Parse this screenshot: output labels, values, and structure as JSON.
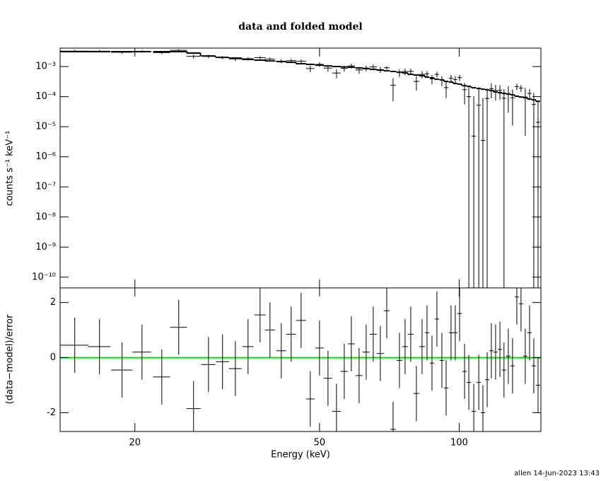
{
  "chart_data": [
    {
      "type": "errorbar",
      "title": "data and folded model",
      "ylabel": "counts s⁻¹ keV⁻¹",
      "log_x": true,
      "log_y": true,
      "xlim": [
        13.8,
        150
      ],
      "ylim": [
        4.4e-11,
        0.0041
      ],
      "yticks": [
        {
          "value": 0.001,
          "label": "10⁻³"
        },
        {
          "value": 0.0001,
          "label": "10⁻⁴"
        },
        {
          "value": 1e-05,
          "label": "10⁻⁵"
        },
        {
          "value": 1e-06,
          "label": "10⁻⁶"
        },
        {
          "value": 1e-07,
          "label": "10⁻⁷"
        },
        {
          "value": 1e-08,
          "label": "10⁻⁸"
        },
        {
          "value": 1e-09,
          "label": "10⁻⁹"
        },
        {
          "value": 1e-10,
          "label": "10⁻¹⁰"
        }
      ],
      "color": "#000000",
      "model_color": "#000000",
      "x": [
        14.84,
        16.78,
        18.77,
        20.72,
        22.86,
        24.86,
        26.76,
        28.82,
        30.9,
        32.93,
        35.07,
        37.23,
        39.1,
        41.36,
        43.44,
        45.63,
        47.76,
        50.0,
        52.15,
        54.39,
        56.53,
        58.55,
        60.85,
        63.03,
        65.28,
        67.61,
        69.8,
        72.03,
        74.34,
        76.45,
        78.62,
        80.86,
        83.18,
        85.24,
        87.37,
        89.53,
        91.76,
        93.72,
        96.03,
        98.07,
        100.2,
        102.7,
        104.9,
        107.5,
        110.2,
        112.5,
        114.9,
        117.3,
        119.8,
        122.4,
        124.9,
        127.6,
        130.3,
        133.1,
        135.9,
        138.8,
        141.8,
        144.8,
        147.9
      ],
      "x_err": [
        1.04,
        0.94,
        0.99,
        0.95,
        0.96,
        1.05,
        0.94,
        1.01,
        0.98,
        1.04,
        0.98,
        1.05,
        0.96,
        1.02,
        1.07,
        1.12,
        1.0,
        1.05,
        1.1,
        1.15,
        0.99,
        1.03,
        1.07,
        1.11,
        1.15,
        1.19,
        0.98,
        1.01,
        1.04,
        1.07,
        1.1,
        1.13,
        1.17,
        0.9,
        0.92,
        0.94,
        0.97,
        0.99,
        1.01,
        1.03,
        1.06,
        1.08,
        1.1,
        1.13,
        1.16,
        1.18,
        1.21,
        1.24,
        1.26,
        1.29,
        1.32,
        1.34,
        1.37,
        1.4,
        1.43,
        1.46,
        1.49,
        1.52,
        1.56
      ],
      "values": [
        0.00326,
        0.00324,
        0.00298,
        0.00318,
        0.0029,
        0.00346,
        0.00218,
        0.00218,
        0.00198,
        0.0018,
        0.00182,
        0.00198,
        0.00177,
        0.00151,
        0.00157,
        0.00151,
        0.00086,
        0.00118,
        0.00089,
        0.00061,
        0.00087,
        0.00105,
        0.00077,
        0.00089,
        0.00097,
        0.00079,
        0.00091,
        0.00024,
        0.00063,
        0.00068,
        0.00069,
        0.00032,
        0.00055,
        0.00057,
        0.00039,
        0.00055,
        0.00035,
        0.0002,
        0.00041,
        0.00037,
        0.00043,
        0.00017,
        0.0001,
        4.9e-06,
        5.2e-05,
        3.5e-06,
        8.7e-05,
        0.000183,
        0.00016,
        0.00016,
        8.8e-05,
        0.000126,
        9.1e-05,
        0.000216,
        0.000192,
        9.7e-05,
        0.000128,
        5.5e-05,
        1.4e-05
      ],
      "errors": [
        0.00031,
        0.00031,
        0.00031,
        0.00031,
        0.00031,
        0.00031,
        0.00034,
        0.00027,
        0.00024,
        0.00027,
        0.00024,
        0.00023,
        0.00023,
        0.00022,
        0.00022,
        0.0002,
        0.00021,
        0.0002,
        0.00021,
        0.0002,
        0.00019,
        0.00019,
        0.0002,
        0.00019,
        0.00019,
        0.00018,
        0.00011,
        0.00017,
        0.00018,
        0.00017,
        0.000165,
        0.00016,
        0.00015,
        0.00013,
        0.000135,
        0.00012,
        0.000125,
        0.00011,
        0.00012,
        0.00011,
        0.0001,
        0.000115,
        0.00013,
        9.9e-05,
        0.00015,
        8.7e-05,
        0.0001,
        9.5e-05,
        8.6e-05,
        8.1e-05,
        9e-05,
        9.7e-05,
        8e-05,
        5.2e-05,
        4.9e-05,
        9.2e-05,
        5e-05,
        7.8e-05,
        5.6e-05
      ],
      "model": [
        0.00312,
        0.00312,
        0.00312,
        0.00312,
        0.00312,
        0.00312,
        0.0028,
        0.00225,
        0.00202,
        0.00191,
        0.00172,
        0.00163,
        0.00154,
        0.00146,
        0.00138,
        0.00124,
        0.00118,
        0.00111,
        0.00105,
        0.001,
        0.00097,
        0.00095,
        0.000897,
        0.00085,
        0.000805,
        0.00076,
        0.000722,
        0.000685,
        0.000648,
        0.00061,
        0.00055,
        0.000522,
        0.000495,
        0.000445,
        0.00042,
        0.000377,
        0.00036,
        0.00032,
        0.000304,
        0.000273,
        0.00026,
        0.00023,
        0.00022,
        0.000197,
        0.000187,
        0.000177,
        0.000168,
        0.000159,
        0.000143,
        0.000135,
        0.000128,
        0.000121,
        0.000115,
        0.000103,
        9.7e-05,
        9.2e-05,
        8.3e-05,
        7.8e-05,
        7e-05
      ]
    },
    {
      "type": "errorbar",
      "xlabel": "Energy (keV)",
      "ylabel": "(data−model)/error",
      "log_x": true,
      "xlim": [
        13.8,
        150
      ],
      "ylim": [
        -2.68,
        2.53
      ],
      "xticks": [
        20,
        50,
        100
      ],
      "yticks": [
        -2,
        0,
        2
      ],
      "color": "#000000",
      "reference_line": {
        "value": 0,
        "color": "#00dd00"
      },
      "x": [
        14.84,
        16.78,
        18.77,
        20.72,
        22.86,
        24.86,
        26.76,
        28.82,
        30.9,
        32.93,
        35.07,
        37.23,
        39.1,
        41.36,
        43.44,
        45.63,
        47.76,
        50.0,
        52.15,
        54.39,
        56.53,
        58.55,
        60.85,
        63.03,
        65.28,
        67.61,
        69.8,
        72.03,
        74.34,
        76.45,
        78.62,
        80.86,
        83.18,
        85.24,
        87.37,
        89.53,
        91.76,
        93.72,
        96.03,
        98.07,
        100.2,
        102.7,
        104.9,
        107.5,
        110.2,
        112.5,
        114.9,
        117.3,
        119.8,
        122.4,
        124.9,
        127.6,
        130.3,
        133.1,
        135.9,
        138.8,
        141.8,
        144.8,
        147.9
      ],
      "x_err": [
        1.04,
        0.94,
        0.99,
        0.95,
        0.96,
        1.05,
        0.94,
        1.01,
        0.98,
        1.04,
        0.98,
        1.05,
        0.96,
        1.02,
        1.07,
        1.12,
        1.0,
        1.05,
        1.1,
        1.15,
        0.99,
        1.03,
        1.07,
        1.11,
        1.15,
        1.19,
        0.98,
        1.01,
        1.04,
        1.07,
        1.1,
        1.13,
        1.17,
        0.9,
        0.92,
        0.94,
        0.97,
        0.99,
        1.01,
        1.03,
        1.06,
        1.08,
        1.1,
        1.13,
        1.16,
        1.18,
        1.21,
        1.24,
        1.26,
        1.29,
        1.32,
        1.34,
        1.37,
        1.4,
        1.43,
        1.46,
        1.49,
        1.52,
        1.56
      ],
      "values": [
        0.45,
        0.4,
        -0.45,
        0.2,
        -0.7,
        1.1,
        -1.85,
        -0.25,
        -0.15,
        -0.4,
        0.4,
        1.55,
        1.0,
        0.25,
        0.85,
        1.35,
        -1.5,
        0.35,
        -0.75,
        -1.95,
        -0.5,
        0.5,
        -0.65,
        0.2,
        0.85,
        0.15,
        1.7,
        -2.6,
        -0.1,
        0.4,
        0.85,
        -1.3,
        0.4,
        0.9,
        -0.2,
        1.4,
        -0.1,
        -1.1,
        0.9,
        0.9,
        1.6,
        -0.5,
        -0.9,
        -1.95,
        -0.9,
        -2.0,
        -0.8,
        0.25,
        0.2,
        0.3,
        -0.45,
        0.05,
        -0.3,
        2.2,
        1.95,
        0.05,
        0.9,
        -0.3,
        -1.0
      ],
      "errors": [
        1,
        1,
        1,
        1,
        1,
        1,
        1,
        1,
        1,
        1,
        1,
        1,
        1,
        1,
        1,
        1,
        1,
        1,
        1,
        1,
        1,
        1,
        1,
        1,
        1,
        1,
        1,
        1,
        1,
        1,
        1,
        1,
        1,
        1,
        1,
        1,
        1,
        1,
        1,
        1,
        1,
        1,
        1,
        1,
        1,
        1,
        1,
        1,
        1,
        1,
        1,
        1,
        1,
        1,
        1,
        1,
        1,
        1,
        1
      ]
    }
  ],
  "footer": "allen 14-Jun-2023 13:43"
}
